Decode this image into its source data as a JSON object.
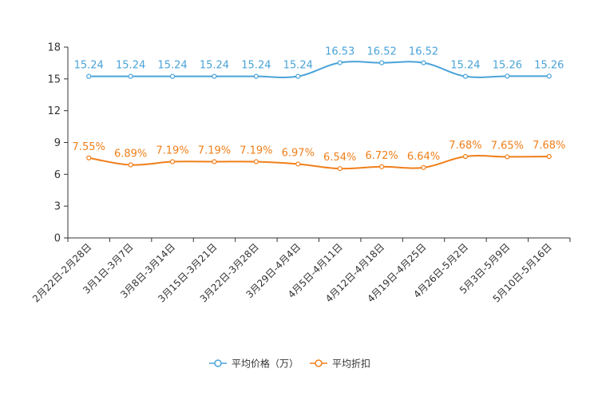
{
  "chart_data": {
    "type": "line",
    "categories": [
      "2月22日-2月28日",
      "3月1日-3月7日",
      "3月8日-3月14日",
      "3月15日-3月21日",
      "3月22日-3月28日",
      "3月29日-4月4日",
      "4月5日-4月11日",
      "4月12日-4月18日",
      "4月19日-4月25日",
      "4月26日-5月2日",
      "5月3日-5月9日",
      "5月10日-5月16日"
    ],
    "ylim": [
      0,
      18
    ],
    "yticks": [
      0,
      3,
      6,
      9,
      12,
      15,
      18
    ],
    "series": [
      {
        "name": "平均价格（万）",
        "color": "#4aa3d8",
        "values": [
          15.24,
          15.24,
          15.24,
          15.24,
          15.24,
          15.24,
          16.53,
          16.52,
          16.52,
          15.24,
          15.26,
          15.26
        ],
        "labels": [
          "15.24",
          "15.24",
          "15.24",
          "15.24",
          "15.24",
          "15.24",
          "16.53",
          "16.52",
          "16.52",
          "15.24",
          "15.26",
          "15.26"
        ]
      },
      {
        "name": "平均折扣",
        "color": "#f07f1a",
        "values": [
          7.55,
          6.89,
          7.19,
          7.19,
          7.19,
          6.97,
          6.54,
          6.72,
          6.64,
          7.68,
          7.65,
          7.68
        ],
        "labels": [
          "7.55%",
          "6.89%",
          "7.19%",
          "7.19%",
          "7.19%",
          "6.97%",
          "6.54%",
          "6.72%",
          "6.64%",
          "7.68%",
          "7.65%",
          "7.68%"
        ]
      }
    ],
    "legend_position": "bottom-center"
  }
}
